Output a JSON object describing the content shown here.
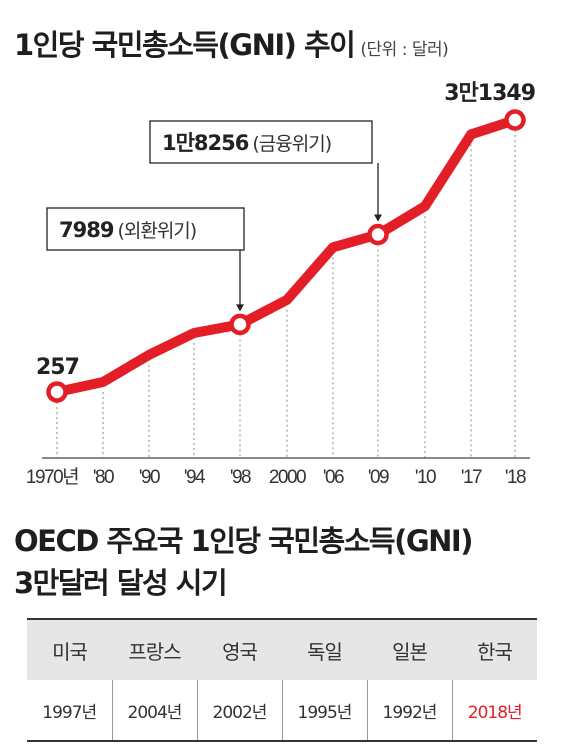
{
  "title": "1인당 국민총소득(GNI) 추이",
  "unit_label": "(단위 : 달러)",
  "chart_data": {
    "type": "line",
    "title": "1인당 국민총소득(GNI) 추이",
    "unit": "달러",
    "categories": [
      "1970년",
      "'80",
      "'90",
      "'94",
      "'98",
      "2000",
      "'06",
      "'09",
      "'10",
      "'17",
      "'18"
    ],
    "values": [
      257,
      1400,
      4500,
      7000,
      7989,
      10800,
      16800,
      18256,
      21500,
      29700,
      31349
    ],
    "ylim": [
      0,
      33000
    ],
    "grid": "vertical-dotted",
    "color": "#e41e26",
    "labeled_points": [
      {
        "category": "1970년",
        "value_label": "257"
      },
      {
        "category": "'98",
        "value_label": "7989",
        "note": "(외환위기)"
      },
      {
        "category": "'09",
        "value_label": "1만8256",
        "note": "(금융위기)"
      },
      {
        "category": "'18",
        "value_label": "3만1349"
      }
    ]
  },
  "section2": {
    "title_line1": "OECD 주요국 1인당 국민총소득(GNI)",
    "title_line2": "3만달러 달성 시기",
    "headers": [
      "미국",
      "프랑스",
      "영국",
      "독일",
      "일본",
      "한국"
    ],
    "values": [
      "1997년",
      "2004년",
      "2002년",
      "1995년",
      "1992년",
      "2018년"
    ],
    "highlight_color": "#e41e26"
  }
}
